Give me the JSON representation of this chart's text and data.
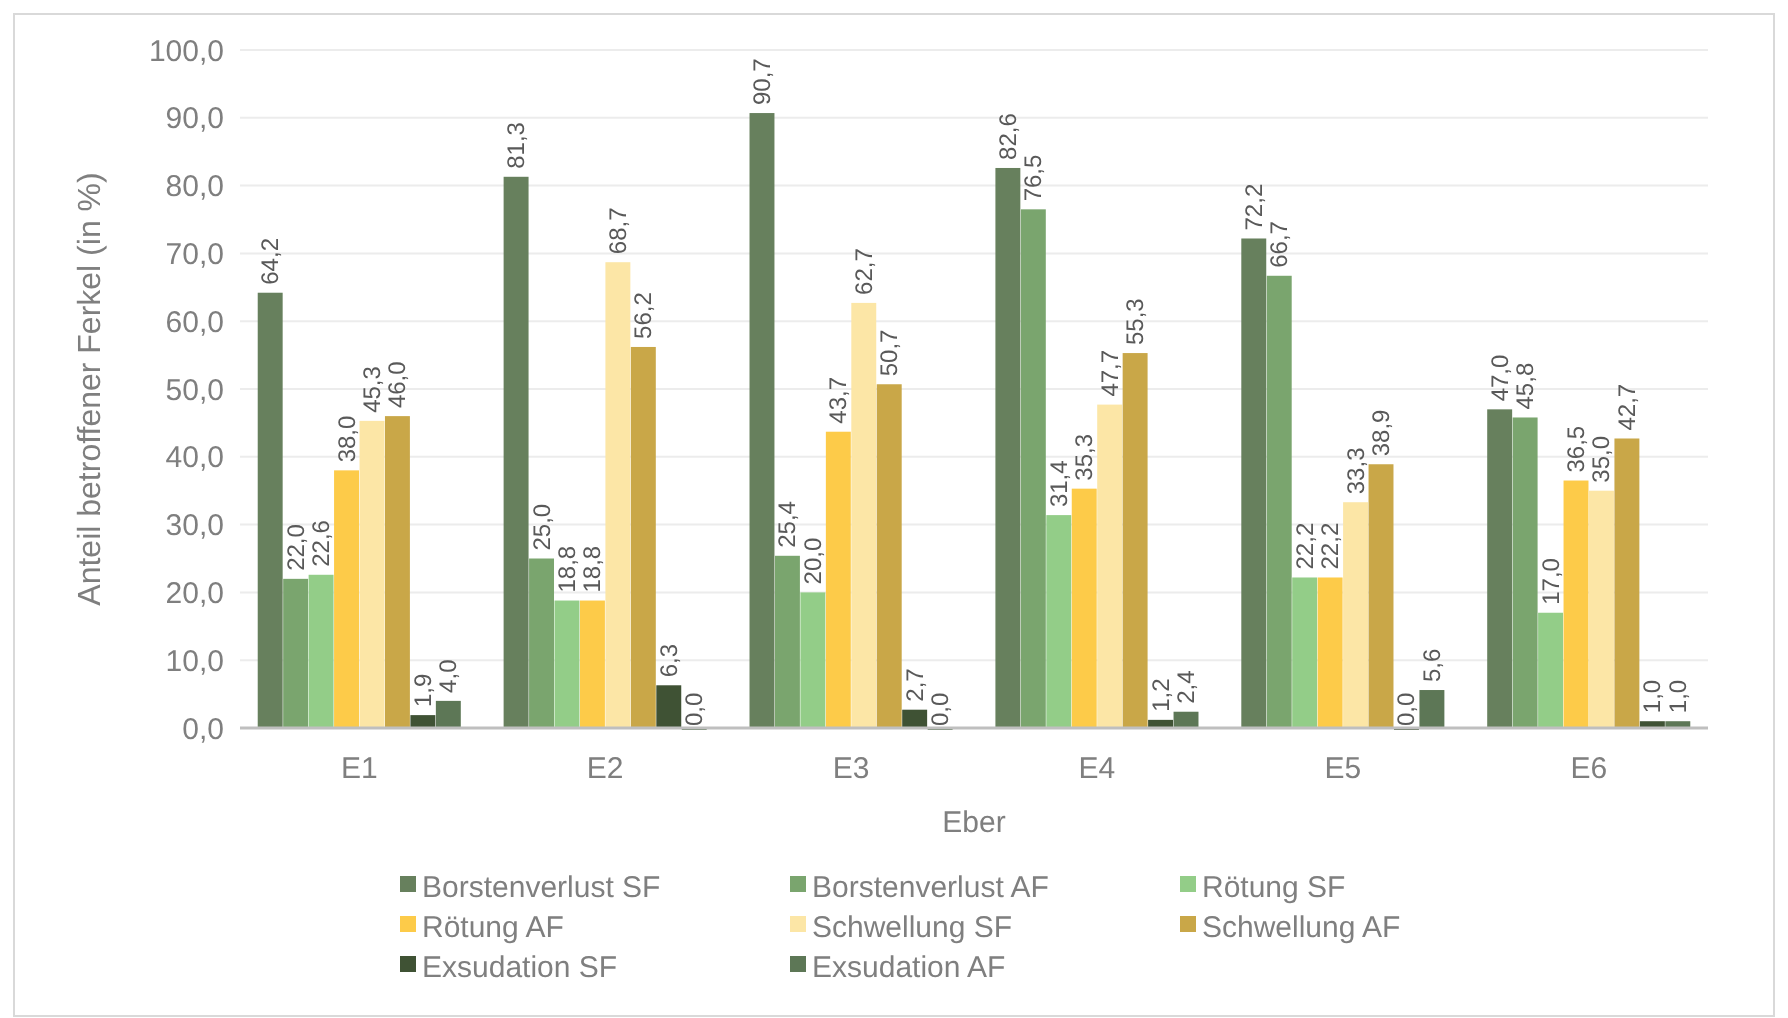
{
  "chart_data": {
    "type": "bar",
    "xlabel": "Eber",
    "ylabel": "Anteil betroffener Ferkel (in %)",
    "categories": [
      "E1",
      "E2",
      "E3",
      "E4",
      "E5",
      "E6"
    ],
    "series": [
      {
        "name": "Borstenverlust SF",
        "color": "#67805d",
        "values": [
          64.2,
          81.3,
          90.7,
          82.6,
          72.2,
          47.0
        ],
        "value_labels": [
          "64,2",
          "81,3",
          "90,7",
          "82,6",
          "72,2",
          "47,0"
        ]
      },
      {
        "name": "Borstenverlust AF",
        "color": "#7aa56e",
        "values": [
          22.0,
          25.0,
          25.4,
          76.5,
          66.7,
          45.8
        ],
        "value_labels": [
          "22,0",
          "25,0",
          "25,4",
          "76,5",
          "66,7",
          "45,8"
        ]
      },
      {
        "name": "Rötung SF",
        "color": "#93cd88",
        "values": [
          22.6,
          18.8,
          20.0,
          31.4,
          22.2,
          17.0
        ],
        "value_labels": [
          "22,6",
          "18,8",
          "20,0",
          "31,4",
          "22,2",
          "17,0"
        ]
      },
      {
        "name": "Rötung AF",
        "color": "#fdcb49",
        "values": [
          38.0,
          18.8,
          43.7,
          35.3,
          22.2,
          36.5
        ],
        "value_labels": [
          "38,0",
          "18,8",
          "43,7",
          "35,3",
          "22,2",
          "36,5"
        ]
      },
      {
        "name": "Schwellung SF",
        "color": "#fce6a6",
        "values": [
          45.3,
          68.7,
          62.7,
          47.7,
          33.3,
          35.0
        ],
        "value_labels": [
          "45,3",
          "68,7",
          "62,7",
          "47,7",
          "33,3",
          "35,0"
        ]
      },
      {
        "name": "Schwellung AF",
        "color": "#c9a748",
        "values": [
          46.0,
          56.2,
          50.7,
          55.3,
          38.9,
          42.7
        ],
        "value_labels": [
          "46,0",
          "56,2",
          "50,7",
          "55,3",
          "38,9",
          "42,7"
        ]
      },
      {
        "name": "Exsudation SF",
        "color": "#3f5234",
        "values": [
          1.9,
          6.3,
          2.7,
          1.2,
          0.0,
          1.0
        ],
        "value_labels": [
          "1,9",
          "6,3",
          "2,7",
          "1,2",
          "0,0",
          "1,0"
        ]
      },
      {
        "name": "Exsudation AF",
        "color": "#5d7756",
        "values": [
          4.0,
          0.0,
          0.0,
          2.4,
          5.6,
          1.0
        ],
        "value_labels": [
          "4,0",
          "0,0",
          "0,0",
          "2,4",
          "5,6",
          "1,0"
        ]
      }
    ],
    "ylim": [
      0,
      100
    ],
    "yticks": [
      {
        "value": 0,
        "label": "0,0"
      },
      {
        "value": 10,
        "label": "10,0"
      },
      {
        "value": 20,
        "label": "20,0"
      },
      {
        "value": 30,
        "label": "30,0"
      },
      {
        "value": 40,
        "label": "40,0"
      },
      {
        "value": 50,
        "label": "50,0"
      },
      {
        "value": 60,
        "label": "60,0"
      },
      {
        "value": 70,
        "label": "70,0"
      },
      {
        "value": 80,
        "label": "80,0"
      },
      {
        "value": 90,
        "label": "90,0"
      },
      {
        "value": 100,
        "label": "100,0"
      }
    ],
    "grid": "y",
    "legend": "bottom"
  }
}
